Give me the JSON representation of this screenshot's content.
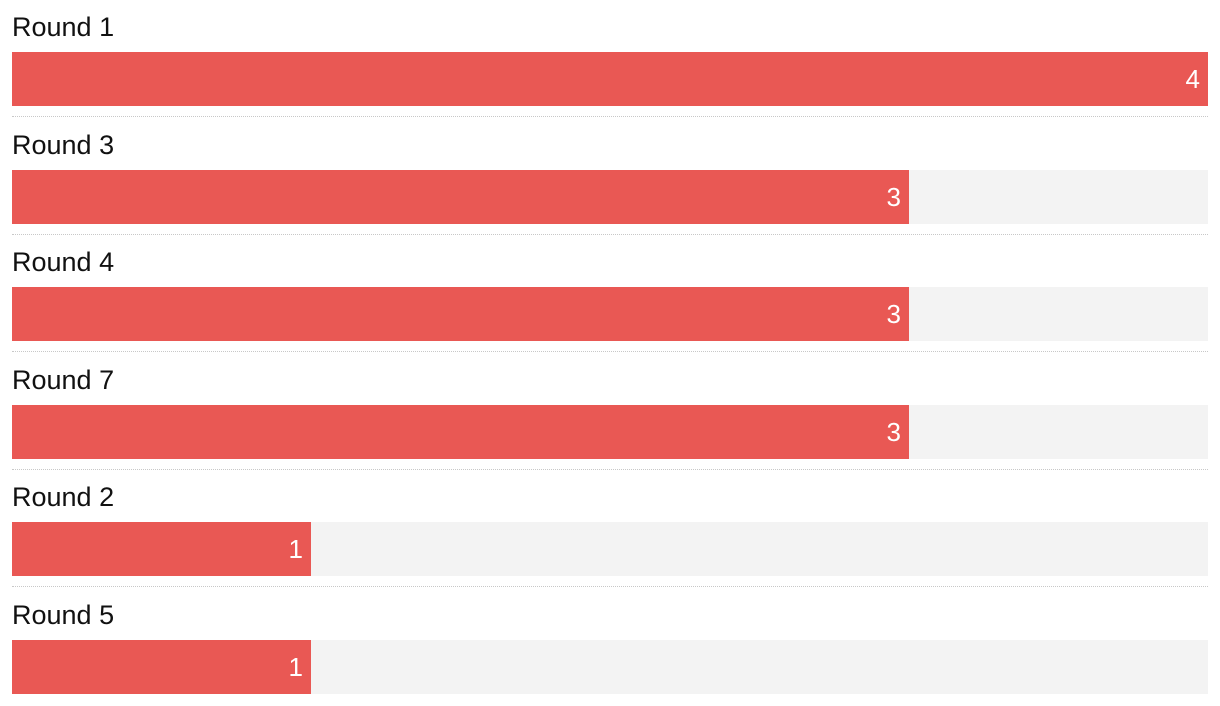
{
  "chart_data": {
    "type": "bar",
    "orientation": "horizontal",
    "categories": [
      "Round 1",
      "Round 3",
      "Round 4",
      "Round 7",
      "Round 2",
      "Round 5"
    ],
    "values": [
      4,
      3,
      3,
      3,
      1,
      1
    ],
    "color": "#e95854",
    "track_color": "#f3f3f3"
  }
}
